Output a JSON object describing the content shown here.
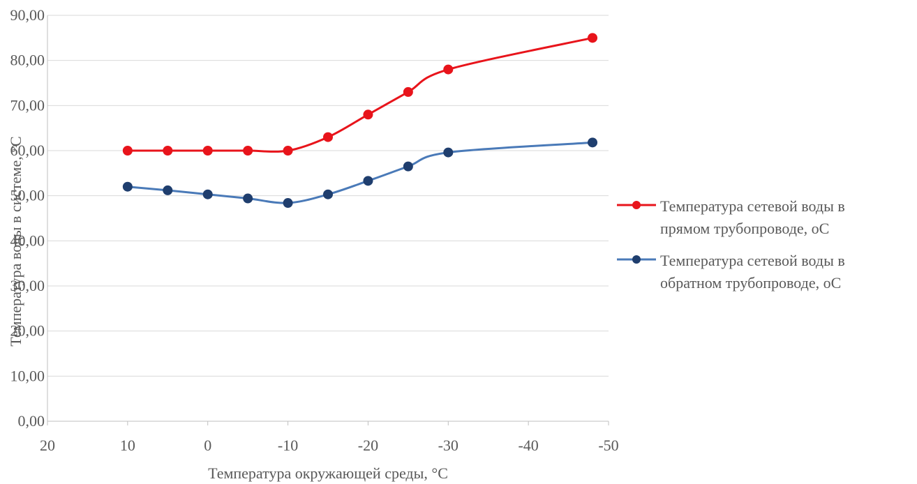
{
  "chart_data": {
    "type": "line",
    "xlabel": "Температура окружающей среды, °C",
    "ylabel": "Температура воды в системе, °С",
    "xlim": [
      20,
      -50
    ],
    "ylim": [
      0,
      90
    ],
    "x_ticks": [
      20,
      10,
      0,
      -10,
      -20,
      -30,
      -40,
      -50
    ],
    "x_tick_labels": [
      "20",
      "10",
      "0",
      "-10",
      "-20",
      "-30",
      "-40",
      "-50"
    ],
    "y_ticks": [
      0,
      10,
      20,
      30,
      40,
      50,
      60,
      70,
      80,
      90
    ],
    "y_tick_labels": [
      "0,00",
      "10,00",
      "20,00",
      "30,00",
      "40,00",
      "50,00",
      "60,00",
      "70,00",
      "80,00",
      "90,00"
    ],
    "grid": "horizontal",
    "legend_position": "right",
    "series": [
      {
        "name": "Температура сетевой воды в прямом трубопроводе, оС",
        "color": "#e8141b",
        "x": [
          10,
          5,
          0,
          -5,
          -10,
          -15,
          -20,
          -25,
          -30,
          -48
        ],
        "y": [
          60,
          60,
          60,
          60,
          60,
          63,
          68,
          73,
          78,
          85
        ]
      },
      {
        "name": "Температура сетевой воды в обратном трубопроводе, оС",
        "color": "#1f3e6e",
        "line_color": "#4a7ab8",
        "x": [
          10,
          5,
          0,
          -5,
          -10,
          -15,
          -20,
          -25,
          -30,
          -48
        ],
        "y": [
          52,
          51.2,
          50.3,
          49.4,
          48.4,
          50.3,
          53.3,
          56.5,
          59.6,
          61.8
        ]
      }
    ]
  },
  "legend": {
    "items": [
      {
        "line1": "Температура сетевой воды в",
        "line2": "прямом трубопроводе, оС"
      },
      {
        "line1": "Температура сетевой воды в",
        "line2": "обратном трубопроводе, оС"
      }
    ]
  }
}
